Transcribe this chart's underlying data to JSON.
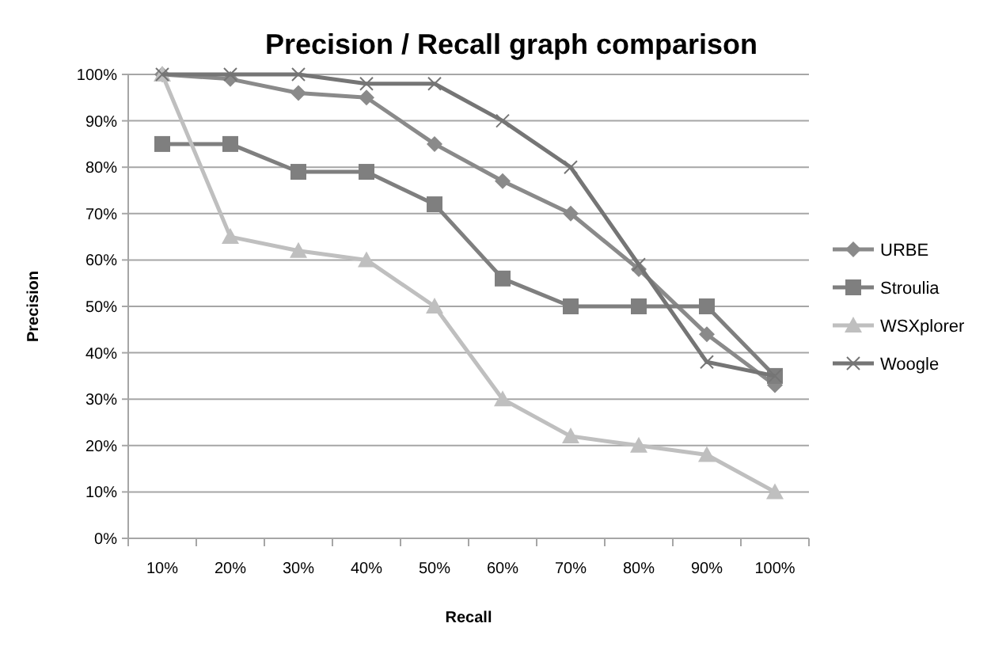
{
  "chart_data": {
    "type": "line",
    "title": "Precision / Recall graph comparison",
    "xlabel": "Recall",
    "ylabel": "Precision",
    "categories": [
      "10%",
      "20%",
      "30%",
      "40%",
      "50%",
      "60%",
      "70%",
      "80%",
      "90%",
      "100%"
    ],
    "ylim": [
      0,
      100
    ],
    "yticks": [
      {
        "value": 0,
        "label": "0%"
      },
      {
        "value": 10,
        "label": "10%"
      },
      {
        "value": 20,
        "label": "20%"
      },
      {
        "value": 30,
        "label": "30%"
      },
      {
        "value": 40,
        "label": "40%"
      },
      {
        "value": 50,
        "label": "50%"
      },
      {
        "value": 60,
        "label": "60%"
      },
      {
        "value": 70,
        "label": "70%"
      },
      {
        "value": 80,
        "label": "80%"
      },
      {
        "value": 90,
        "label": "90%"
      },
      {
        "value": 100,
        "label": "100%"
      }
    ],
    "grid": "y",
    "legend": "right",
    "line_style": "solid",
    "series": [
      {
        "name": "URBE",
        "color": "#8a8a8a",
        "marker": "diamond",
        "values": [
          100,
          99,
          96,
          95,
          85,
          77,
          70,
          58,
          44,
          33
        ]
      },
      {
        "name": "Stroulia",
        "color": "#7f7f7f",
        "marker": "square",
        "values": [
          85,
          85,
          79,
          79,
          72,
          56,
          50,
          50,
          50,
          35
        ]
      },
      {
        "name": "WSXplorer",
        "color": "#bfbfbf",
        "marker": "triangle",
        "values": [
          100,
          65,
          62,
          60,
          50,
          30,
          22,
          20,
          18,
          10
        ]
      },
      {
        "name": "Woogle",
        "color": "#757575",
        "marker": "cross",
        "values": [
          100,
          100,
          100,
          98,
          98,
          90,
          80,
          59,
          38,
          35
        ]
      }
    ]
  }
}
